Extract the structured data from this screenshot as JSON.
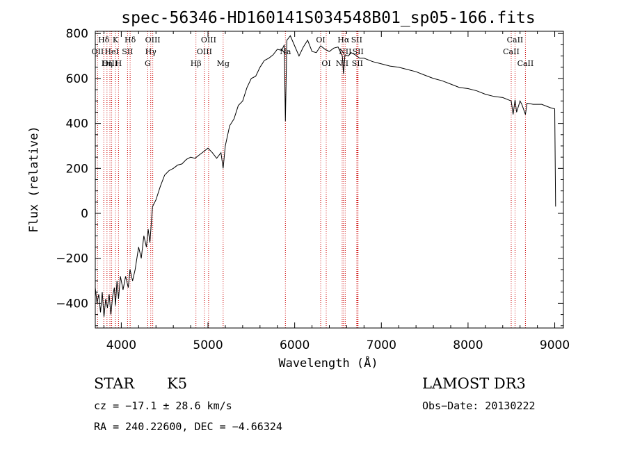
{
  "chart_data": {
    "type": "line",
    "title": "spec-56346-HD160141S034548B01_sp05-166.fits",
    "xlabel": "Wavelength (Å)",
    "ylabel": "Flux (relative)",
    "xlim": [
      3700,
      9100
    ],
    "ylim": [
      -510,
      810
    ],
    "xticks": [
      4000,
      5000,
      6000,
      7000,
      8000,
      9000
    ],
    "yticks": [
      -400,
      -200,
      0,
      200,
      400,
      600,
      800
    ],
    "grid": false,
    "series": [
      {
        "x": [
          3700,
          3720,
          3740,
          3760,
          3780,
          3800,
          3820,
          3840,
          3860,
          3880,
          3900,
          3920,
          3933,
          3950,
          3968,
          3990,
          4020,
          4050,
          4080,
          4100,
          4130,
          4160,
          4200,
          4230,
          4260,
          4290,
          4310,
          4330,
          4360,
          4400,
          4450,
          4500,
          4550,
          4600,
          4650,
          4700,
          4750,
          4800,
          4850,
          4900,
          4950,
          5000,
          5050,
          5100,
          5150,
          5175,
          5200,
          5250,
          5300,
          5350,
          5400,
          5450,
          5500,
          5550,
          5600,
          5650,
          5700,
          5750,
          5800,
          5850,
          5880,
          5893,
          5910,
          5950,
          6000,
          6050,
          6100,
          6150,
          6200,
          6250,
          6300,
          6350,
          6400,
          6450,
          6500,
          6550,
          6563,
          6580,
          6620,
          6650,
          6700,
          6750,
          6800,
          6900,
          7000,
          7100,
          7200,
          7300,
          7400,
          7500,
          7600,
          7700,
          7800,
          7900,
          8000,
          8100,
          8200,
          8300,
          8400,
          8498,
          8520,
          8542,
          8560,
          8600,
          8620,
          8662,
          8680,
          8750,
          8850,
          8950,
          9000,
          9010
        ],
        "y": [
          -330,
          -400,
          -360,
          -440,
          -350,
          -460,
          -380,
          -420,
          -360,
          -450,
          -370,
          -330,
          -410,
          -300,
          -380,
          -280,
          -340,
          -280,
          -330,
          -250,
          -300,
          -250,
          -150,
          -200,
          -100,
          -150,
          -70,
          -130,
          30,
          60,
          120,
          170,
          190,
          200,
          215,
          220,
          240,
          250,
          245,
          260,
          275,
          290,
          270,
          245,
          270,
          200,
          300,
          390,
          420,
          480,
          500,
          560,
          600,
          610,
          650,
          680,
          690,
          705,
          730,
          725,
          750,
          410,
          770,
          790,
          745,
          700,
          740,
          770,
          720,
          715,
          745,
          730,
          720,
          735,
          740,
          700,
          620,
          705,
          700,
          715,
          705,
          690,
          690,
          675,
          665,
          655,
          650,
          640,
          630,
          615,
          600,
          590,
          575,
          560,
          555,
          545,
          530,
          520,
          515,
          500,
          440,
          505,
          450,
          500,
          485,
          440,
          490,
          485,
          485,
          470,
          465,
          30
        ]
      }
    ],
    "lines": [
      {
        "name": "Hδ",
        "x": 3798,
        "row": 0
      },
      {
        "name": "OII",
        "x": 3727,
        "row": 1
      },
      {
        "name": "OIII",
        "x": 3869,
        "row": 2
      },
      {
        "name": "K",
        "x": 3933,
        "row": 0
      },
      {
        "name": "HeI",
        "x": 3889,
        "row": 1
      },
      {
        "name": "Hη",
        "x": 3835,
        "row": 2
      },
      {
        "name": "SII",
        "x": 4072,
        "row": 1
      },
      {
        "name": "Hδ",
        "x": 4102,
        "row": 0
      },
      {
        "name": "H",
        "x": 3968,
        "row": 2
      },
      {
        "name": "OIII",
        "x": 4363,
        "row": 0
      },
      {
        "name": "Hγ",
        "x": 4340,
        "row": 1
      },
      {
        "name": "G",
        "x": 4305,
        "row": 2
      },
      {
        "name": "OIII",
        "x": 5007,
        "row": 0
      },
      {
        "name": "OIII",
        "x": 4959,
        "row": 1
      },
      {
        "name": "Hβ",
        "x": 4861,
        "row": 2
      },
      {
        "name": "Mg",
        "x": 5175,
        "row": 2
      },
      {
        "name": "Na",
        "x": 5893,
        "row": 1
      },
      {
        "name": "OI",
        "x": 6300,
        "row": 0
      },
      {
        "name": "OI",
        "x": 6364,
        "row": 2
      },
      {
        "name": "Hα",
        "x": 6563,
        "row": 0
      },
      {
        "name": "NII",
        "x": 6583,
        "row": 1
      },
      {
        "name": "NII",
        "x": 6548,
        "row": 2
      },
      {
        "name": "SII",
        "x": 6716,
        "row": 0
      },
      {
        "name": "SII",
        "x": 6731,
        "row": 1
      },
      {
        "name": "SII",
        "x": 6724,
        "row": 2
      },
      {
        "name": "CaII",
        "x": 8542,
        "row": 0
      },
      {
        "name": "CaII",
        "x": 8498,
        "row": 1
      },
      {
        "name": "CaII",
        "x": 8662,
        "row": 2
      }
    ]
  },
  "info": {
    "obj_type": "STAR",
    "subclass": "K5",
    "survey": "LAMOST DR3",
    "cz": "cz = −17.1 ± 28.6 km/s",
    "obs_date": "Obs−Date: 20130222",
    "radec": "RA = 240.22600, DEC =  −4.66324"
  },
  "colors": {
    "spectrum": "#000000",
    "line_marker": "#cc0000"
  }
}
